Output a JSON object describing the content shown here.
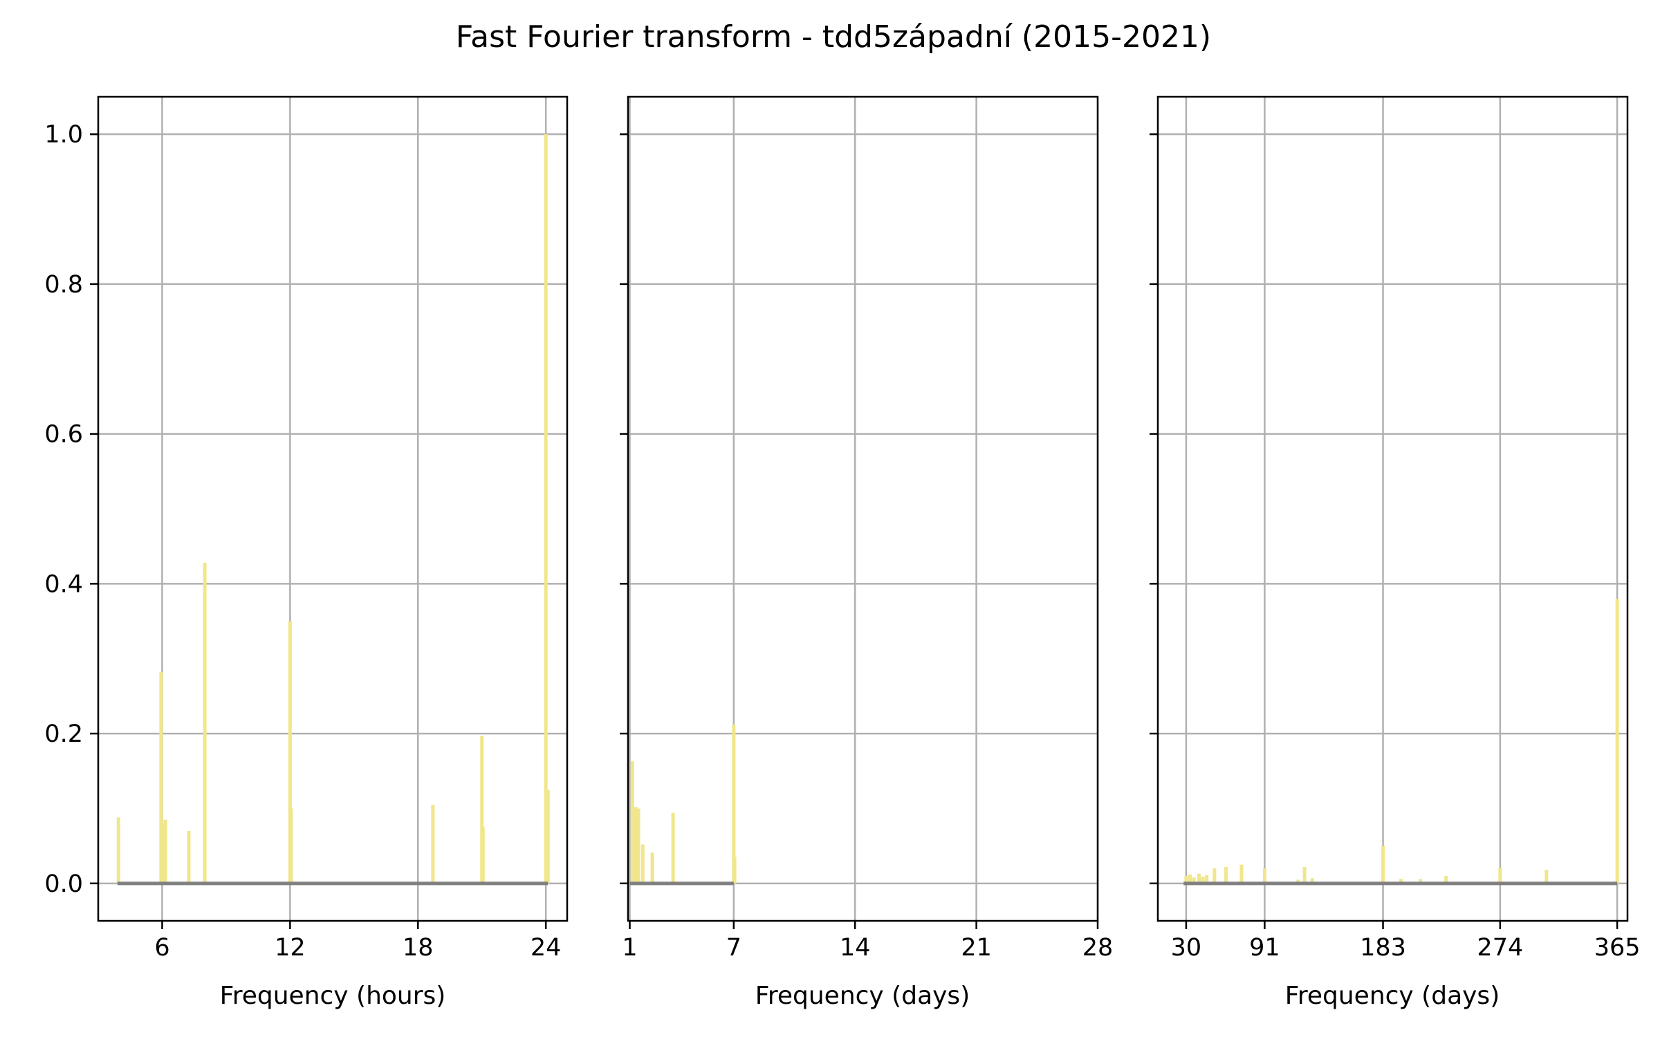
{
  "chart_data": [
    {
      "type": "bar",
      "title": "Fast Fourier transform - tdd5západní (2015-2021)",
      "xlabel": "Frequency (hours)",
      "ylabel": "",
      "xlim": [
        3,
        25
      ],
      "ylim": [
        -0.05,
        1.05
      ],
      "xticks": [
        6,
        12,
        18,
        24
      ],
      "xtick_labels": [
        "6",
        "12",
        "18",
        "24"
      ],
      "yticks": [
        0.0,
        0.2,
        0.4,
        0.6,
        0.8,
        1.0
      ],
      "ytick_labels": [
        "0.0",
        "0.2",
        "0.4",
        "0.6",
        "0.8",
        "1.0"
      ],
      "grid": true,
      "baseline_range": [
        3.9,
        24.1
      ],
      "x": [
        3.95,
        5.95,
        6.0,
        6.15,
        7.25,
        8.0,
        12.0,
        12.05,
        18.7,
        21.0,
        21.05,
        24.0,
        24.1
      ],
      "values": [
        0.088,
        0.282,
        0.08,
        0.085,
        0.07,
        0.428,
        0.35,
        0.1,
        0.105,
        0.197,
        0.075,
        1.0,
        0.125
      ]
    },
    {
      "type": "bar",
      "title": "",
      "xlabel": "Frequency (days)",
      "ylabel": "",
      "xlim": [
        0.9,
        28
      ],
      "ylim": [
        -0.05,
        1.05
      ],
      "xticks": [
        1,
        7,
        14,
        21,
        28
      ],
      "xtick_labels": [
        "1",
        "7",
        "14",
        "21",
        "28"
      ],
      "yticks": [
        0.0,
        0.2,
        0.4,
        0.6,
        0.8,
        1.0
      ],
      "grid": true,
      "baseline_range": [
        1.0,
        7.0
      ],
      "x": [
        1.0,
        1.15,
        1.35,
        1.5,
        1.75,
        2.3,
        3.5,
        7.0,
        7.05
      ],
      "values": [
        0.0,
        0.163,
        0.102,
        0.1,
        0.052,
        0.041,
        0.094,
        0.212,
        0.035
      ]
    },
    {
      "type": "bar",
      "title": "",
      "xlabel": "Frequency (days)",
      "ylabel": "",
      "xlim": [
        8,
        373
      ],
      "ylim": [
        -0.05,
        1.05
      ],
      "xticks": [
        30,
        91,
        183,
        274,
        365
      ],
      "xtick_labels": [
        "30",
        "91",
        "183",
        "274",
        "365"
      ],
      "yticks": [
        0.0,
        0.2,
        0.4,
        0.6,
        0.8,
        1.0
      ],
      "grid": true,
      "baseline_range": [
        28,
        365
      ],
      "x": [
        30,
        33,
        36,
        40,
        43,
        46,
        52,
        61,
        73,
        91,
        117,
        122,
        128,
        183,
        197,
        212,
        232,
        274,
        310,
        365
      ],
      "values": [
        0.01,
        0.012,
        0.008,
        0.013,
        0.009,
        0.011,
        0.02,
        0.022,
        0.025,
        0.02,
        0.005,
        0.022,
        0.007,
        0.05,
        0.006,
        0.006,
        0.01,
        0.021,
        0.018,
        0.38
      ]
    }
  ],
  "colors": {
    "stem": "#f0e68c",
    "baseline": "#808080",
    "grid": "#b0b0b0",
    "axes": "#000000"
  }
}
